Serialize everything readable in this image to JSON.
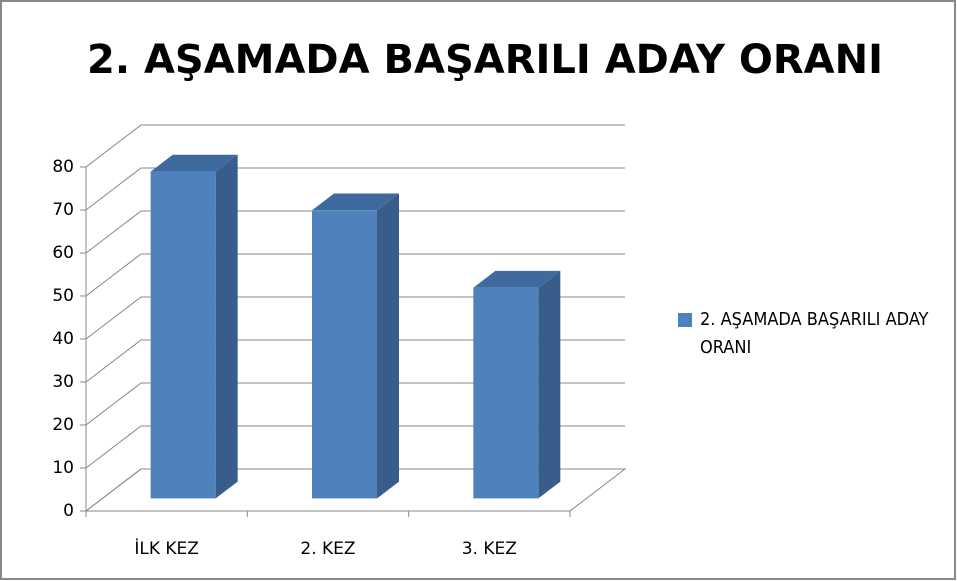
{
  "chart_data": {
    "type": "bar3d",
    "title": "2. AŞAMADA BAŞARILI ADAY ORANI",
    "categories": [
      "İLK KEZ",
      "2. KEZ",
      "3. KEZ"
    ],
    "series": [
      {
        "name": "2. AŞAMADA BAŞARILI ADAY ORANI",
        "color": "#4f81bd",
        "values": [
          76,
          67,
          49
        ]
      }
    ],
    "ylim": [
      0,
      80
    ],
    "yticks": [
      0,
      10,
      20,
      30,
      40,
      50,
      60,
      70,
      80
    ],
    "grid": true,
    "legend": "right"
  }
}
